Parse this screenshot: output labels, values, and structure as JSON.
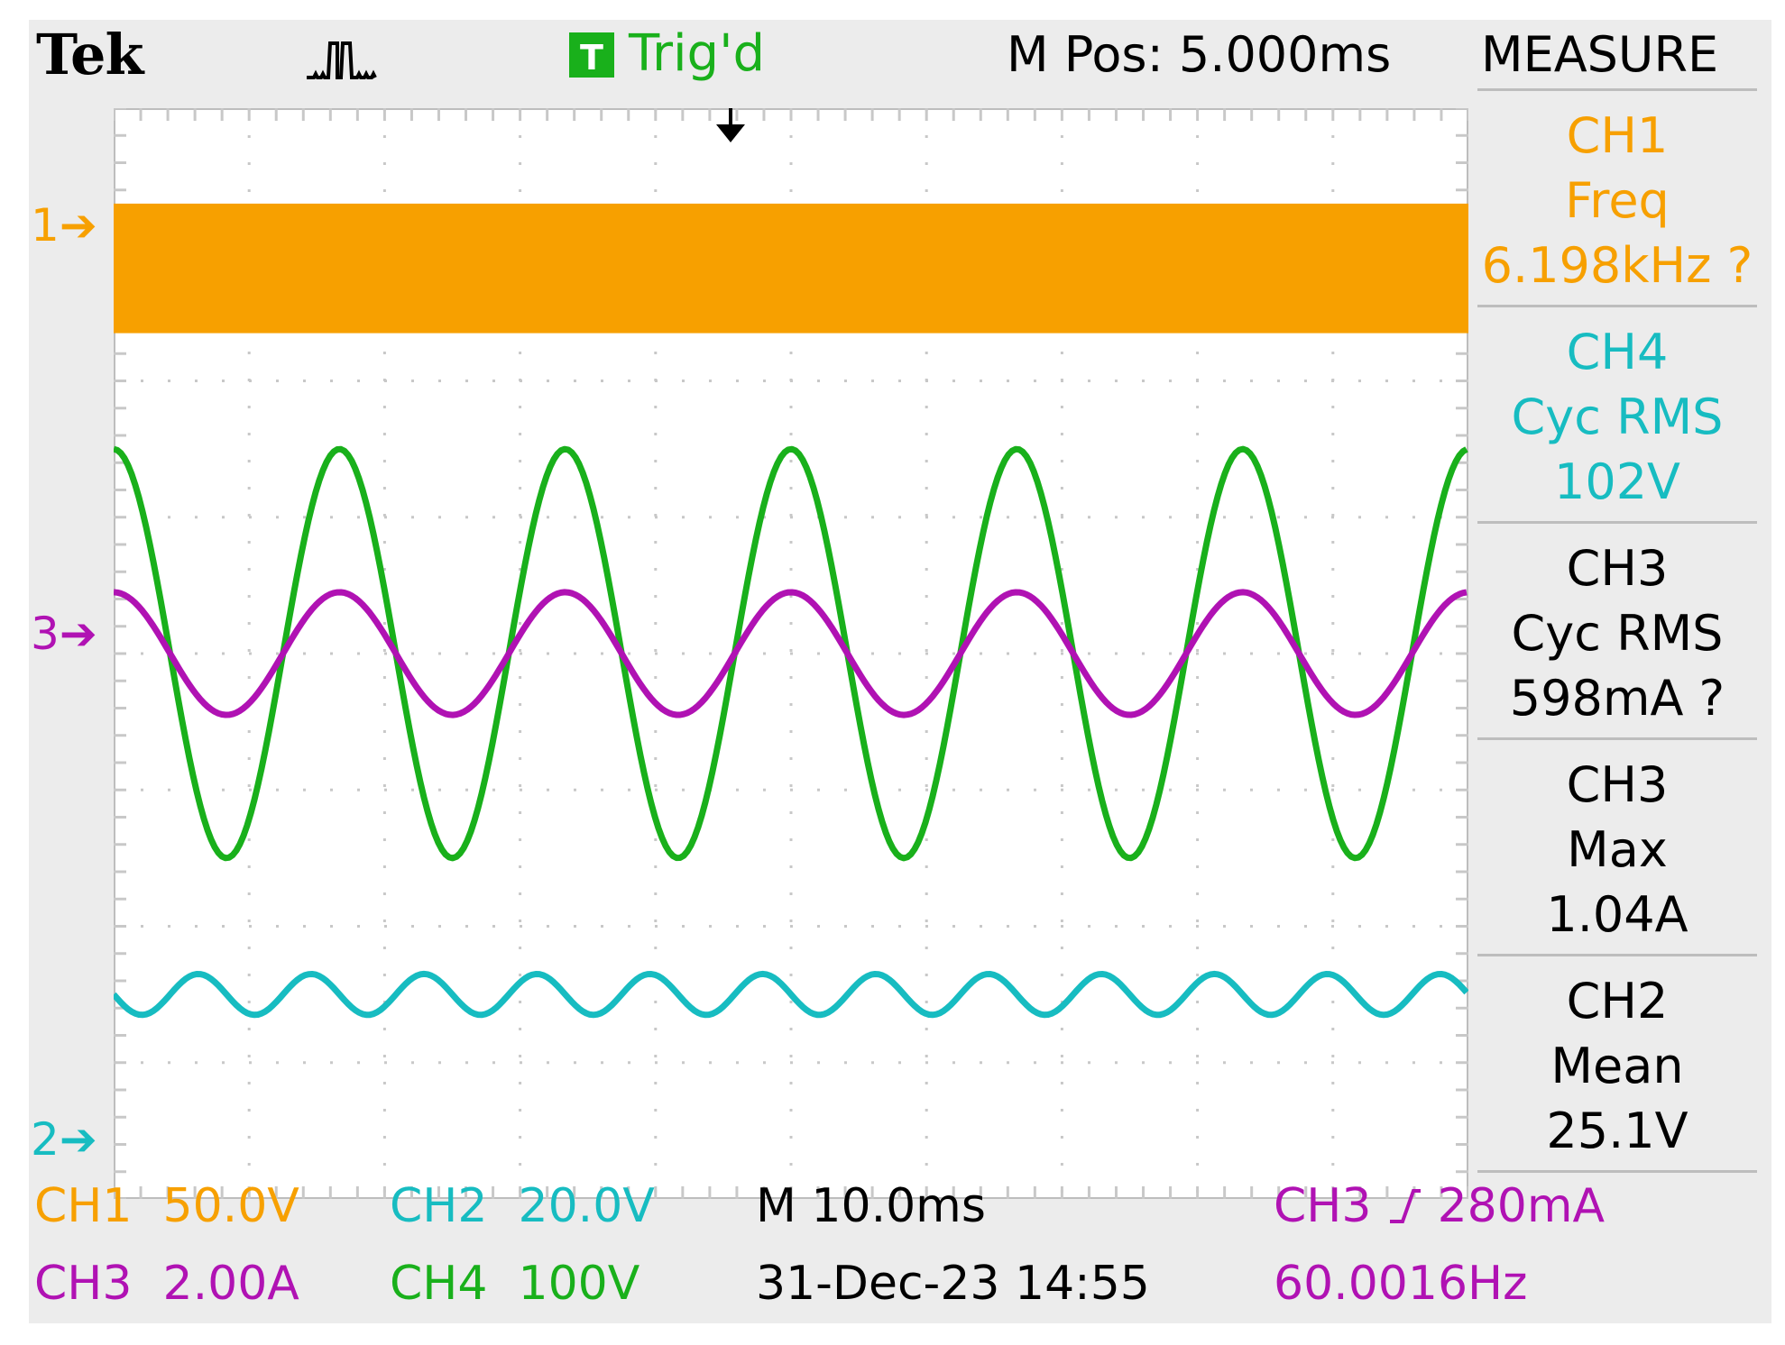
{
  "header": {
    "brand": "Tek",
    "trigger_badge": "T",
    "trigger_status": "Trig'd",
    "horizontal_position": "M Pos: 5.000ms",
    "menu_title": "MEASURE"
  },
  "ground_markers": {
    "ch1": "1",
    "ch2": "2",
    "ch3": "3"
  },
  "measurements": [
    {
      "channel": "CH1",
      "type": "Freq",
      "value": "6.198kHz ?",
      "color": "#f7a000"
    },
    {
      "channel": "CH4",
      "type": "Cyc RMS",
      "value": "102V",
      "color": "#19b01b"
    },
    {
      "channel": "CH3",
      "type": "Cyc RMS",
      "value": "598mA ?",
      "color": "#b012b3"
    },
    {
      "channel": "CH3",
      "type": "Max",
      "value": "1.04A",
      "color": "#b012b3"
    },
    {
      "channel": "CH2",
      "type": "Mean",
      "value": "25.1V",
      "color": "#17bcc1"
    }
  ],
  "footer": {
    "ch1_label": "CH1",
    "ch1_scale": "50.0V",
    "ch2_label": "CH2",
    "ch2_scale": "20.0V",
    "ch3_label": "CH3",
    "ch3_scale": "2.00A",
    "ch4_label": "CH4",
    "ch4_scale": "100V",
    "timebase": "M 10.0ms",
    "datetime": "31-Dec-23 14:55",
    "trigger_source": "CH3",
    "trigger_level": "280mA",
    "trigger_frequency": "60.0016Hz"
  },
  "colors": {
    "ch1": "#f7a000",
    "ch2": "#17bcc1",
    "ch3": "#b012b3",
    "ch4": "#19b01b"
  },
  "chart_data": {
    "type": "line",
    "title": "",
    "x_divisions": 10,
    "y_divisions": 8,
    "grid": true,
    "series": [
      {
        "name": "CH1",
        "shape": "dense switching band",
        "frequency_khz": 6.198,
        "color": "#f7a000"
      },
      {
        "name": "CH4",
        "shape": "sine",
        "frequency_hz": 60.0016,
        "cycles_on_screen": 6,
        "amplitude_div": 1.5,
        "center_div": 0.0,
        "color": "#19b01b"
      },
      {
        "name": "CH3",
        "shape": "sine",
        "frequency_hz": 60.0016,
        "cycles_on_screen": 6,
        "amplitude_div": 0.45,
        "center_div": 0.0,
        "color": "#b012b3"
      },
      {
        "name": "CH2",
        "shape": "ripple",
        "cycles_on_screen": 12,
        "amplitude_div": 0.15,
        "center_div": -2.5,
        "color": "#17bcc1"
      }
    ]
  }
}
